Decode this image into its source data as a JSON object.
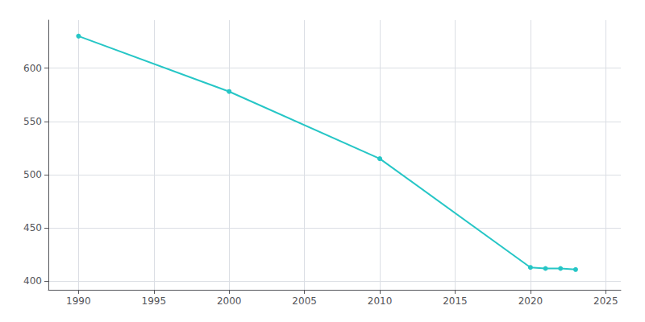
{
  "chart_data": {
    "type": "line",
    "x": [
      1990,
      2000,
      2010,
      2020,
      2021,
      2022,
      2023
    ],
    "values": [
      630,
      578,
      515,
      413,
      412,
      412,
      411
    ],
    "color": "#26C6C6",
    "marker": "circle",
    "xlim": [
      1988,
      2026
    ],
    "ylim": [
      392,
      645
    ],
    "xticks": [
      1990,
      1995,
      2000,
      2005,
      2010,
      2015,
      2020,
      2025
    ],
    "yticks": [
      400,
      450,
      500,
      550,
      600
    ],
    "grid": true
  }
}
